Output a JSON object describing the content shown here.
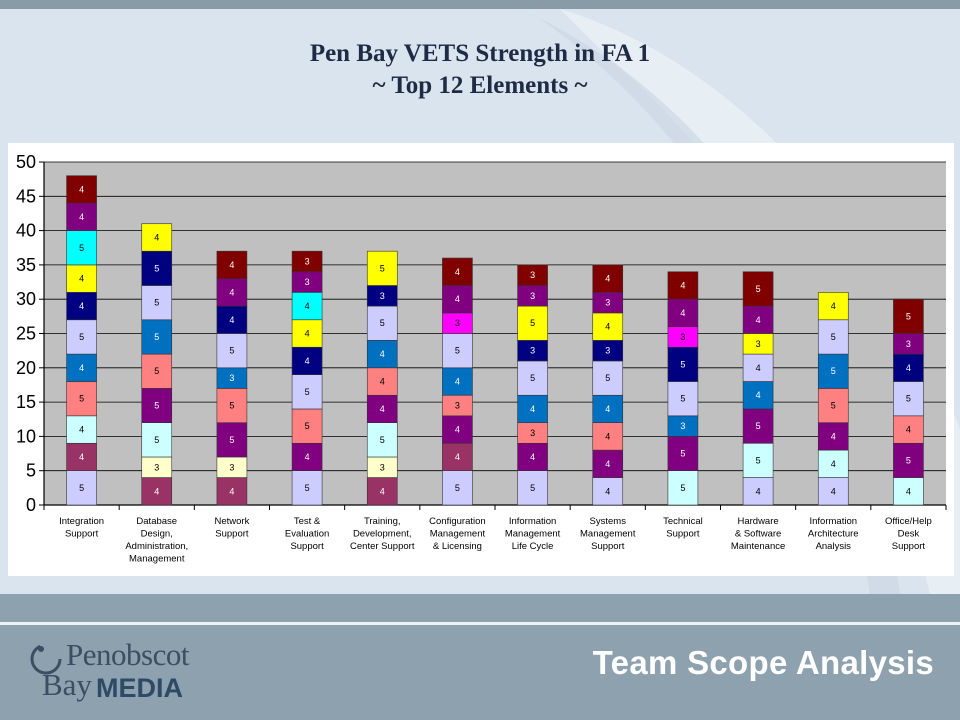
{
  "slide": {
    "title_line1": "Pen Bay VETS Strength in FA 1",
    "title_line2": "~ Top 12 Elements ~",
    "footer_title": "Team Scope Analysis",
    "logo_top": "Penobscot",
    "logo_bottom_1": "Bay",
    "logo_bottom_2": "MEDIA"
  },
  "colors": {
    "plot_bg": "#c0c0c0",
    "slide_bg": "#d9e4ee",
    "palette": {
      "blue4": "#0070c0",
      "lavender": "#ccccff",
      "navy": "#000080",
      "purple": "#800080",
      "maroon": "#800000",
      "salmon": "#ff8080",
      "yellow": "#ffff00",
      "cyan": "#00ffff",
      "lightcyan": "#ccffff",
      "cream": "#ffffcc",
      "magenta": "#ff00ff",
      "plum": "#993366"
    }
  },
  "chart_data": {
    "type": "bar",
    "stacked": true,
    "ylim": [
      0,
      50
    ],
    "yticks": [
      0,
      5,
      10,
      15,
      20,
      25,
      30,
      35,
      40,
      45,
      50
    ],
    "grid": true,
    "legend": "none",
    "categories": [
      [
        "Integration",
        "Support"
      ],
      [
        "Database",
        "Design,",
        "Administration,",
        "Management"
      ],
      [
        "Network",
        "Support"
      ],
      [
        "Test &",
        "Evaluation",
        "Support"
      ],
      [
        "Training,",
        "Development,",
        "Center Support"
      ],
      [
        "Configuration",
        "Management",
        "& Licensing"
      ],
      [
        "Information",
        "Management",
        "Life Cycle"
      ],
      [
        "Systems",
        "Management",
        "Support"
      ],
      [
        "Technical",
        "Support"
      ],
      [
        "Hardware",
        "& Software",
        "Maintenance"
      ],
      [
        "Information",
        "Architecture",
        "Analysis"
      ],
      [
        "Office/Help",
        "Desk",
        "Support"
      ]
    ],
    "stacks": [
      [
        {
          "v": 5,
          "c": "lavender"
        },
        {
          "v": 4,
          "c": "plum"
        },
        {
          "v": 4,
          "c": "lightcyan"
        },
        {
          "v": 5,
          "c": "salmon"
        },
        {
          "v": 4,
          "c": "blue4"
        },
        {
          "v": 5,
          "c": "lavender"
        },
        {
          "v": 4,
          "c": "navy"
        },
        {
          "v": 4,
          "c": "yellow"
        },
        {
          "v": 5,
          "c": "cyan"
        },
        {
          "v": 4,
          "c": "purple"
        },
        {
          "v": 4,
          "c": "maroon"
        }
      ],
      [
        {
          "v": 4,
          "c": "plum"
        },
        {
          "v": 3,
          "c": "cream"
        },
        {
          "v": 5,
          "c": "lightcyan"
        },
        {
          "v": 5,
          "c": "purple"
        },
        {
          "v": 5,
          "c": "salmon"
        },
        {
          "v": 5,
          "c": "blue4"
        },
        {
          "v": 5,
          "c": "lavender"
        },
        {
          "v": 5,
          "c": "navy"
        },
        {
          "v": 4,
          "c": "yellow"
        }
      ],
      [
        {
          "v": 4,
          "c": "plum"
        },
        {
          "v": 3,
          "c": "cream"
        },
        {
          "v": 5,
          "c": "purple"
        },
        {
          "v": 5,
          "c": "salmon"
        },
        {
          "v": 3,
          "c": "blue4"
        },
        {
          "v": 5,
          "c": "lavender"
        },
        {
          "v": 4,
          "c": "navy"
        },
        {
          "v": 4,
          "c": "purple"
        },
        {
          "v": 4,
          "c": "maroon"
        }
      ],
      [
        {
          "v": 5,
          "c": "lavender"
        },
        {
          "v": 4,
          "c": "purple"
        },
        {
          "v": 5,
          "c": "salmon"
        },
        {
          "v": 5,
          "c": "lavender"
        },
        {
          "v": 4,
          "c": "navy"
        },
        {
          "v": 4,
          "c": "yellow"
        },
        {
          "v": 4,
          "c": "cyan"
        },
        {
          "v": 3,
          "c": "purple"
        },
        {
          "v": 3,
          "c": "maroon"
        }
      ],
      [
        {
          "v": 4,
          "c": "plum"
        },
        {
          "v": 3,
          "c": "cream"
        },
        {
          "v": 5,
          "c": "lightcyan"
        },
        {
          "v": 4,
          "c": "purple"
        },
        {
          "v": 4,
          "c": "salmon"
        },
        {
          "v": 4,
          "c": "blue4"
        },
        {
          "v": 5,
          "c": "lavender"
        },
        {
          "v": 3,
          "c": "navy"
        },
        {
          "v": 5,
          "c": "yellow"
        }
      ],
      [
        {
          "v": 5,
          "c": "lavender"
        },
        {
          "v": 4,
          "c": "plum"
        },
        {
          "v": 4,
          "c": "purple"
        },
        {
          "v": 3,
          "c": "salmon"
        },
        {
          "v": 4,
          "c": "blue4"
        },
        {
          "v": 5,
          "c": "lavender"
        },
        {
          "v": 3,
          "c": "magenta"
        },
        {
          "v": 4,
          "c": "purple"
        },
        {
          "v": 4,
          "c": "maroon"
        }
      ],
      [
        {
          "v": 5,
          "c": "lavender"
        },
        {
          "v": 4,
          "c": "purple"
        },
        {
          "v": 3,
          "c": "salmon"
        },
        {
          "v": 4,
          "c": "blue4"
        },
        {
          "v": 5,
          "c": "lavender"
        },
        {
          "v": 3,
          "c": "navy"
        },
        {
          "v": 5,
          "c": "yellow"
        },
        {
          "v": 3,
          "c": "purple"
        },
        {
          "v": 3,
          "c": "maroon"
        }
      ],
      [
        {
          "v": 4,
          "c": "lavender"
        },
        {
          "v": 4,
          "c": "purple"
        },
        {
          "v": 4,
          "c": "salmon"
        },
        {
          "v": 4,
          "c": "blue4"
        },
        {
          "v": 5,
          "c": "lavender"
        },
        {
          "v": 3,
          "c": "navy"
        },
        {
          "v": 4,
          "c": "yellow"
        },
        {
          "v": 3,
          "c": "purple"
        },
        {
          "v": 4,
          "c": "maroon"
        }
      ],
      [
        {
          "v": 5,
          "c": "lightcyan"
        },
        {
          "v": 5,
          "c": "purple"
        },
        {
          "v": 3,
          "c": "blue4"
        },
        {
          "v": 5,
          "c": "lavender"
        },
        {
          "v": 5,
          "c": "navy"
        },
        {
          "v": 3,
          "c": "magenta"
        },
        {
          "v": 4,
          "c": "purple"
        },
        {
          "v": 4,
          "c": "maroon"
        }
      ],
      [
        {
          "v": 4,
          "c": "lavender"
        },
        {
          "v": 5,
          "c": "lightcyan"
        },
        {
          "v": 5,
          "c": "purple"
        },
        {
          "v": 4,
          "c": "blue4"
        },
        {
          "v": 4,
          "c": "lavender"
        },
        {
          "v": 3,
          "c": "yellow"
        },
        {
          "v": 4,
          "c": "purple"
        },
        {
          "v": 5,
          "c": "maroon"
        }
      ],
      [
        {
          "v": 4,
          "c": "lavender"
        },
        {
          "v": 4,
          "c": "lightcyan"
        },
        {
          "v": 4,
          "c": "purple"
        },
        {
          "v": 5,
          "c": "salmon"
        },
        {
          "v": 5,
          "c": "blue4"
        },
        {
          "v": 5,
          "c": "lavender"
        },
        {
          "v": 4,
          "c": "yellow"
        }
      ],
      [
        {
          "v": 4,
          "c": "lightcyan"
        },
        {
          "v": 5,
          "c": "purple"
        },
        {
          "v": 4,
          "c": "salmon"
        },
        {
          "v": 5,
          "c": "lavender"
        },
        {
          "v": 4,
          "c": "navy"
        },
        {
          "v": 3,
          "c": "purple"
        },
        {
          "v": 5,
          "c": "maroon"
        }
      ]
    ]
  }
}
